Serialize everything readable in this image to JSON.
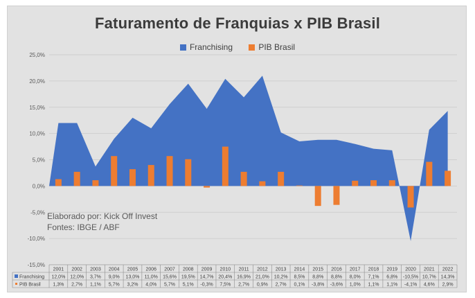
{
  "chart_data": {
    "type": "area",
    "title": "Faturamento de Franquias x PIB Brasil",
    "categories": [
      "2001",
      "2002",
      "2003",
      "2004",
      "2005",
      "2006",
      "2007",
      "2008",
      "2009",
      "2010",
      "2011",
      "2012",
      "2013",
      "2014",
      "2015",
      "2016",
      "2017",
      "2018",
      "2019",
      "2020",
      "2021",
      "2022"
    ],
    "series": [
      {
        "name": "Franchising",
        "type": "area",
        "color": "#4472c4",
        "values": [
          12.0,
          12.0,
          3.7,
          9.0,
          13.0,
          11.0,
          15.6,
          19.5,
          14.7,
          20.4,
          16.9,
          21.0,
          10.2,
          8.5,
          8.8,
          8.8,
          8.0,
          7.1,
          6.8,
          -10.5,
          10.7,
          14.3
        ],
        "labels": [
          "12,0%",
          "12,0%",
          "3,7%",
          "9,0%",
          "13,0%",
          "11,0%",
          "15,6%",
          "19,5%",
          "14,7%",
          "20,4%",
          "16,9%",
          "21,0%",
          "10,2%",
          "8,5%",
          "8,8%",
          "8,8%",
          "8,0%",
          "7,1%",
          "6,8%",
          "-10,5%",
          "10,7%",
          "14,3%"
        ]
      },
      {
        "name": "PIB Brasil",
        "type": "bar",
        "color": "#ed7d31",
        "values": [
          1.3,
          2.7,
          1.1,
          5.7,
          3.2,
          4.0,
          5.7,
          5.1,
          -0.3,
          7.5,
          2.7,
          0.9,
          2.7,
          0.1,
          -3.8,
          -3.6,
          1.0,
          1.1,
          1.1,
          -4.1,
          4.6,
          2.9
        ],
        "labels": [
          "1,3%",
          "2,7%",
          "1,1%",
          "5,7%",
          "3,2%",
          "4,0%",
          "5,7%",
          "5,1%",
          "-0,3%",
          "7,5%",
          "2,7%",
          "0,9%",
          "2,7%",
          "0,1%",
          "-3,8%",
          "-3,6%",
          "1,0%",
          "1,1%",
          "1,1%",
          "-4,1%",
          "4,6%",
          "2,9%"
        ]
      }
    ],
    "ylim": [
      -15,
      25
    ],
    "yticks": [
      25,
      20,
      15,
      10,
      5,
      0,
      -5,
      -10,
      -15
    ],
    "ytick_labels": [
      "25,0%",
      "20,0%",
      "15,0%",
      "10,0%",
      "5,0%",
      "0,0%",
      "-5,0%",
      "-10,0%",
      "-15,0%"
    ],
    "grid": true,
    "legend": "top",
    "data_table": true
  },
  "legend": {
    "franchising": "Franchising",
    "pib": "PIB Brasil"
  },
  "note": {
    "line1": "Elaborado por: Kick Off Invest",
    "line2": "Fontes: IBGE / ABF"
  }
}
